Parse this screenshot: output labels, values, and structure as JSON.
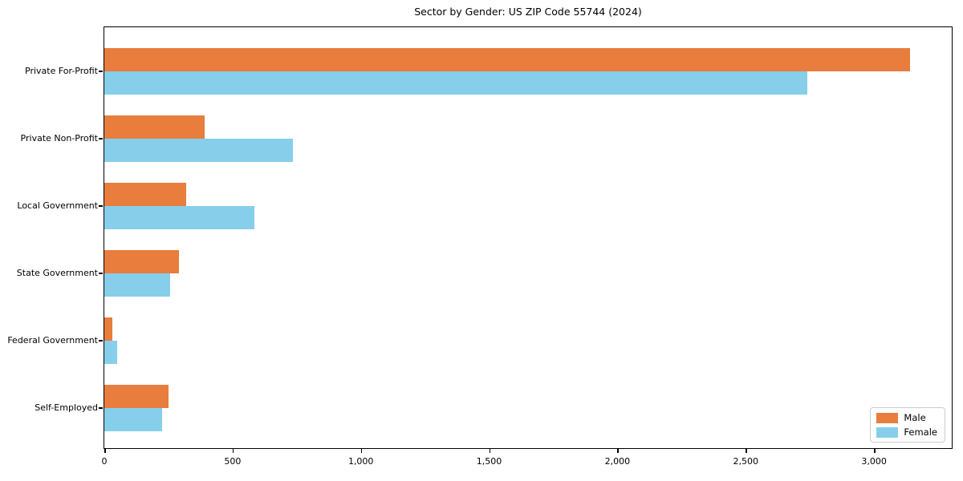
{
  "chart_data": {
    "type": "bar",
    "orientation": "horizontal",
    "title": "Sector by Gender: US ZIP Code 55744 (2024)",
    "categories": [
      "Private For-Profit",
      "Private Non-Profit",
      "Local Government",
      "State Government",
      "Federal Government",
      "Self-Employed"
    ],
    "series": [
      {
        "name": "Male",
        "color": "#e87d3e",
        "values": [
          3140,
          390,
          320,
          290,
          30,
          250
        ]
      },
      {
        "name": "Female",
        "color": "#87ceeb",
        "values": [
          2740,
          735,
          585,
          255,
          50,
          225
        ]
      }
    ],
    "xlabel": "",
    "ylabel": "",
    "xlim": [
      0,
      3300
    ],
    "xticks": {
      "values": [
        0,
        500,
        1000,
        1500,
        2000,
        2500,
        3000
      ],
      "labels": [
        "0",
        "500",
        "1,000",
        "1,500",
        "2,000",
        "2,500",
        "3,000"
      ]
    },
    "grid": false,
    "legend": {
      "position": "lower right",
      "entries": [
        "Male",
        "Female"
      ]
    }
  },
  "colors": {
    "background": "#ffffff",
    "spine": "#000000",
    "text": "#000000",
    "male": "#e87d3e",
    "female": "#87ceeb",
    "legend_border": "#cccccc"
  }
}
